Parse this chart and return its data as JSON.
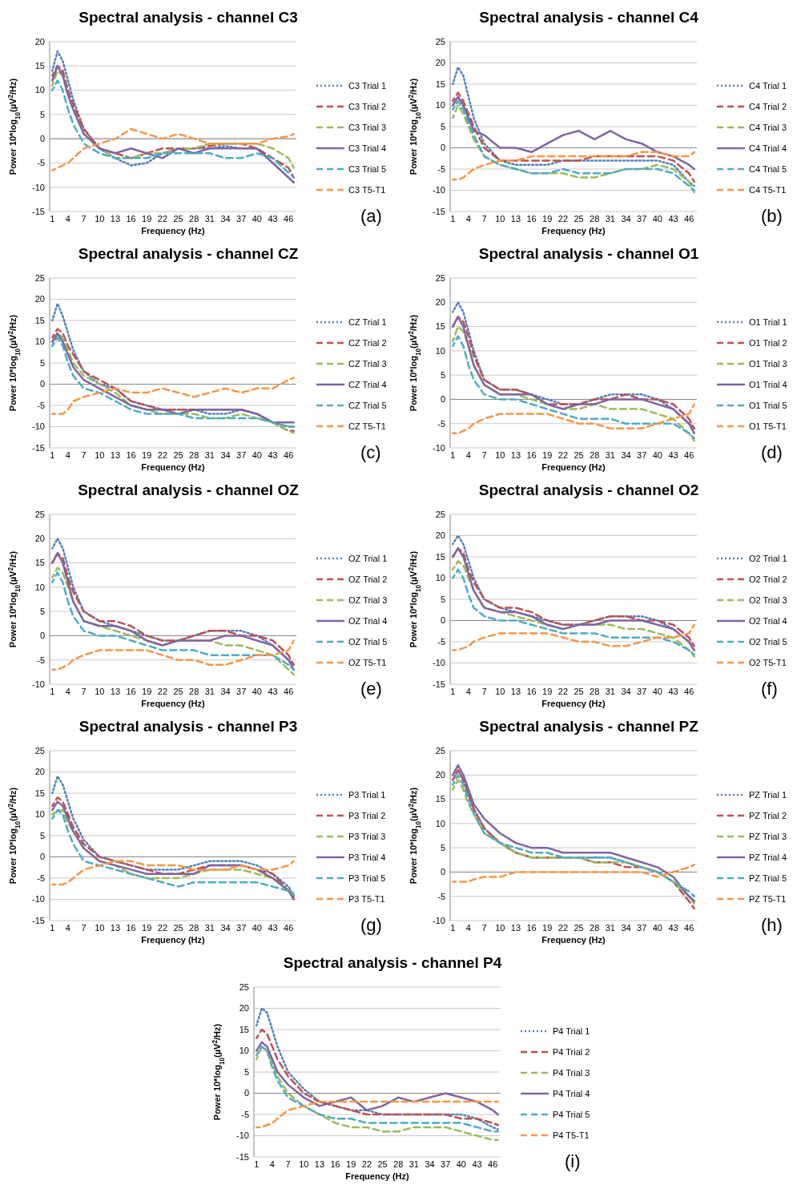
{
  "chart_data": [
    {
      "type": "line",
      "title": "Spectral analysis - channel C3",
      "xlabel": "Frequency (Hz)",
      "ylabel": "Power 10*log$_{10}$(µV$^{2}$/Hz)",
      "annotations": [
        "(a)"
      ],
      "legend": "right",
      "grid": "y",
      "x": [
        1,
        2,
        3,
        4,
        5,
        7,
        10,
        13,
        16,
        19,
        22,
        25,
        28,
        31,
        34,
        37,
        40,
        43,
        46,
        47
      ],
      "xlim": [
        0.5,
        47.5
      ],
      "xticks": [
        1,
        4,
        7,
        10,
        13,
        16,
        19,
        22,
        25,
        28,
        31,
        34,
        37,
        40,
        43,
        46
      ],
      "ylim": [
        -15,
        20
      ],
      "yticks": [
        -15,
        -10,
        -5,
        0,
        5,
        10,
        15,
        20
      ],
      "series": [
        {
          "name": "C3 Trial 1",
          "color": "#4f81bd",
          "line_style": "dotted",
          "values": [
            14,
            18,
            16,
            12,
            8,
            2,
            -2,
            -4,
            -5.5,
            -5,
            -3,
            -2,
            -2,
            -2,
            -1.5,
            -2,
            -2,
            -5,
            -8,
            -9
          ]
        },
        {
          "name": "C3 Trial 2",
          "color": "#c0504d",
          "line_style": "dashed",
          "values": [
            13,
            15,
            14,
            10,
            7,
            2,
            -2,
            -3,
            -4,
            -3,
            -2,
            -2,
            -2,
            -1.5,
            -1,
            -1,
            -2,
            -4,
            -6,
            -8
          ]
        },
        {
          "name": "C3 Trial 3",
          "color": "#9bbb59",
          "line_style": "dashed",
          "values": [
            11,
            14,
            13,
            9,
            6,
            1,
            -2,
            -4,
            -4,
            -3,
            -3,
            -2,
            -2,
            -1,
            -1,
            -1,
            -1,
            -2,
            -4,
            -6
          ]
        },
        {
          "name": "C3 Trial 4",
          "color": "#8064a2",
          "line_style": "solid",
          "values": [
            12,
            15,
            13,
            9,
            6,
            1,
            -2,
            -3,
            -2,
            -3,
            -4,
            -2,
            -3,
            -2,
            -2,
            -2,
            -2,
            -5,
            -8,
            -9
          ]
        },
        {
          "name": "C3 Trial 5",
          "color": "#4bacc6",
          "line_style": "dashed",
          "values": [
            10,
            12,
            10,
            6,
            3,
            -1,
            -3,
            -4,
            -4,
            -4,
            -3,
            -3,
            -3,
            -3,
            -4,
            -4,
            -3,
            -4,
            -7,
            -8
          ]
        },
        {
          "name": "C3 T5-T1",
          "color": "#f79646",
          "line_style": "dashed",
          "values": [
            -6.5,
            -6,
            -5.5,
            -5,
            -4,
            -2,
            -1,
            0,
            2,
            1,
            0,
            1,
            0,
            -1,
            -1,
            -1,
            -1,
            0,
            0.5,
            1
          ]
        }
      ]
    },
    {
      "type": "line",
      "title": "Spectral analysis - channel C4",
      "xlabel": "Frequency (Hz)",
      "ylabel": "Power 10*log$_{10}$(µV$^{2}$/Hz)",
      "annotations": [
        "(b)"
      ],
      "legend": "right",
      "grid": "y",
      "x": [
        1,
        2,
        3,
        4,
        5,
        7,
        10,
        13,
        16,
        19,
        22,
        25,
        28,
        31,
        34,
        37,
        40,
        43,
        46,
        47
      ],
      "xlim": [
        0.5,
        47.5
      ],
      "xticks": [
        1,
        4,
        7,
        10,
        13,
        16,
        19,
        22,
        25,
        28,
        31,
        34,
        37,
        40,
        43,
        46
      ],
      "ylim": [
        -15,
        25
      ],
      "yticks": [
        -15,
        -10,
        -5,
        0,
        5,
        10,
        15,
        20,
        25
      ],
      "series": [
        {
          "name": "C4 Trial 1",
          "color": "#4f81bd",
          "line_style": "dotted",
          "values": [
            15,
            19,
            17,
            12,
            7,
            1,
            -3,
            -4,
            -4,
            -4,
            -3,
            -3,
            -3,
            -3,
            -3,
            -3,
            -3,
            -4,
            -8,
            -9
          ]
        },
        {
          "name": "C4 Trial 2",
          "color": "#c0504d",
          "line_style": "dashed",
          "values": [
            11,
            13,
            11,
            8,
            5,
            0,
            -3,
            -3,
            -3,
            -3,
            -3,
            -3,
            -2,
            -2,
            -2,
            -2,
            -2,
            -3,
            -6,
            -8
          ]
        },
        {
          "name": "C4 Trial 3",
          "color": "#9bbb59",
          "line_style": "dashed",
          "values": [
            7,
            10,
            8,
            5,
            2,
            -2,
            -4,
            -5,
            -6,
            -6,
            -6,
            -7,
            -7,
            -6,
            -5,
            -5,
            -4,
            -5,
            -8,
            -10.5
          ]
        },
        {
          "name": "C4 Trial 4",
          "color": "#8064a2",
          "line_style": "solid",
          "values": [
            10,
            12,
            10,
            7,
            4,
            3,
            0,
            0,
            -1,
            1,
            3,
            4,
            2,
            4,
            2,
            1,
            -1,
            -2,
            -4,
            -5
          ]
        },
        {
          "name": "C4 Trial 5",
          "color": "#4bacc6",
          "line_style": "dashed",
          "values": [
            9,
            11,
            9,
            6,
            3,
            -2,
            -4,
            -5,
            -6,
            -6,
            -5,
            -6,
            -6,
            -6,
            -5,
            -5,
            -5,
            -6,
            -9,
            -10
          ]
        },
        {
          "name": "C4 T5-T1",
          "color": "#f79646",
          "line_style": "dashed",
          "values": [
            -7.5,
            -7.5,
            -7,
            -6,
            -5,
            -4,
            -3,
            -3,
            -2,
            -2,
            -2,
            -2,
            -2,
            -2,
            -2,
            -1,
            -1,
            -2,
            -2,
            -1
          ]
        }
      ]
    },
    {
      "type": "line",
      "title": "Spectral analysis - channel CZ",
      "xlabel": "Frequency (Hz)",
      "ylabel": "Power 10*log$_{10}$(µV$^{2}$/Hz)",
      "annotations": [
        "(c)"
      ],
      "legend": "right",
      "grid": "y",
      "x": [
        1,
        2,
        3,
        4,
        5,
        7,
        10,
        13,
        16,
        19,
        22,
        25,
        28,
        31,
        34,
        37,
        40,
        43,
        46,
        47
      ],
      "xlim": [
        0.5,
        47.5
      ],
      "xticks": [
        1,
        4,
        7,
        10,
        13,
        16,
        19,
        22,
        25,
        28,
        31,
        34,
        37,
        40,
        43,
        46
      ],
      "ylim": [
        -15,
        25
      ],
      "yticks": [
        -15,
        -10,
        -5,
        0,
        5,
        10,
        15,
        20,
        25
      ],
      "series": [
        {
          "name": "CZ Trial 1",
          "color": "#4f81bd",
          "line_style": "dotted",
          "values": [
            15,
            19,
            16,
            12,
            8,
            3,
            0,
            -1,
            -4,
            -5,
            -6,
            -6,
            -6,
            -7,
            -7,
            -6,
            -7,
            -9,
            -10,
            -10
          ]
        },
        {
          "name": "CZ Trial 2",
          "color": "#c0504d",
          "line_style": "dashed",
          "values": [
            11,
            13,
            12,
            9,
            7,
            3,
            1,
            -1,
            -4,
            -5,
            -6,
            -6,
            -6,
            -6,
            -6,
            -6,
            -7,
            -9,
            -11,
            -11
          ]
        },
        {
          "name": "CZ Trial 3",
          "color": "#9bbb59",
          "line_style": "dashed",
          "values": [
            9,
            12,
            11,
            8,
            5,
            2,
            0,
            -2,
            -5,
            -6,
            -7,
            -7,
            -7,
            -8,
            -8,
            -7,
            -8,
            -9,
            -11,
            -11.5
          ]
        },
        {
          "name": "CZ Trial 4",
          "color": "#8064a2",
          "line_style": "solid",
          "values": [
            10,
            12,
            10,
            7,
            4,
            1,
            -1,
            -3,
            -5,
            -6,
            -6,
            -7,
            -6,
            -6,
            -6,
            -6,
            -7,
            -9,
            -9,
            -9
          ]
        },
        {
          "name": "CZ Trial 5",
          "color": "#4bacc6",
          "line_style": "dashed",
          "values": [
            9,
            11,
            9,
            5,
            2,
            -1,
            -2,
            -4,
            -6,
            -7,
            -7,
            -7,
            -8,
            -8,
            -8,
            -8,
            -8,
            -9,
            -10,
            -10
          ]
        },
        {
          "name": "CZ T5-T1",
          "color": "#f79646",
          "line_style": "dashed",
          "values": [
            -7,
            -7,
            -7,
            -6,
            -4,
            -3,
            -2,
            -1,
            -2,
            -2,
            -1,
            -2,
            -3,
            -2,
            -1,
            -2,
            -1,
            -1,
            1,
            1.5
          ]
        }
      ]
    },
    {
      "type": "line",
      "title": "Spectral analysis - channel O1",
      "xlabel": "Frequency (Hz)",
      "ylabel": "Power 10*log$_{10}$(µV$^{2}$/Hz)",
      "annotations": [
        "(d)"
      ],
      "legend": "right",
      "grid": "y",
      "x": [
        1,
        2,
        3,
        4,
        5,
        7,
        10,
        13,
        16,
        19,
        22,
        25,
        28,
        31,
        34,
        37,
        40,
        43,
        46,
        47
      ],
      "xlim": [
        0.5,
        47.5
      ],
      "xticks": [
        1,
        4,
        7,
        10,
        13,
        16,
        19,
        22,
        25,
        28,
        31,
        34,
        37,
        40,
        43,
        46
      ],
      "ylim": [
        -10,
        25
      ],
      "yticks": [
        -10,
        -5,
        0,
        5,
        10,
        15,
        20,
        25
      ],
      "series": [
        {
          "name": "O1 Trial 1",
          "color": "#4f81bd",
          "line_style": "dotted",
          "values": [
            18,
            20,
            18,
            14,
            10,
            4,
            2,
            2,
            1,
            0,
            -1,
            -1,
            0,
            1,
            1,
            1,
            0,
            -2,
            -5,
            -6
          ]
        },
        {
          "name": "O1 Trial 2",
          "color": "#c0504d",
          "line_style": "dashed",
          "values": [
            15,
            17,
            16,
            13,
            9,
            4,
            2,
            2,
            1,
            -1,
            -1,
            -1,
            0,
            0,
            1,
            0,
            0,
            -1,
            -4,
            -6
          ]
        },
        {
          "name": "O1 Trial 3",
          "color": "#9bbb59",
          "line_style": "dashed",
          "values": [
            12,
            15,
            14,
            11,
            7,
            3,
            1,
            1,
            0,
            -1,
            -2,
            -2,
            -1,
            -2,
            -2,
            -2,
            -3,
            -4,
            -7,
            -8.5
          ]
        },
        {
          "name": "O1 Trial 4",
          "color": "#8064a2",
          "line_style": "solid",
          "values": [
            15,
            17,
            15,
            11,
            7,
            3,
            1,
            1,
            1,
            -1,
            -2,
            -1,
            -1,
            0,
            0,
            0,
            -1,
            -2,
            -5,
            -7
          ]
        },
        {
          "name": "O1 Trial 5",
          "color": "#4bacc6",
          "line_style": "dashed",
          "values": [
            11,
            13,
            11,
            7,
            4,
            1,
            0,
            0,
            -1,
            -2,
            -3,
            -4,
            -4,
            -4,
            -5,
            -5,
            -5,
            -5,
            -7,
            -8
          ]
        },
        {
          "name": "O1 T5-T1",
          "color": "#f79646",
          "line_style": "dashed",
          "values": [
            -7,
            -7,
            -6.5,
            -6,
            -5,
            -4,
            -3,
            -3,
            -3,
            -3,
            -4,
            -5,
            -5,
            -6,
            -6,
            -6,
            -5,
            -4,
            -3,
            -1
          ]
        }
      ]
    },
    {
      "type": "line",
      "title": "Spectral analysis - channel OZ",
      "xlabel": "Frequency (Hz)",
      "ylabel": "Power 10*log$_{10}$(µV$^{2}$/Hz)",
      "annotations": [
        "(e)"
      ],
      "legend": "right",
      "grid": "y",
      "x": [
        1,
        2,
        3,
        4,
        5,
        7,
        10,
        13,
        16,
        19,
        22,
        25,
        28,
        31,
        34,
        37,
        40,
        43,
        46,
        47
      ],
      "xlim": [
        0.5,
        47.5
      ],
      "xticks": [
        1,
        4,
        7,
        10,
        13,
        16,
        19,
        22,
        25,
        28,
        31,
        34,
        37,
        40,
        43,
        46
      ],
      "ylim": [
        -10,
        25
      ],
      "yticks": [
        -10,
        -5,
        0,
        5,
        10,
        15,
        20,
        25
      ],
      "series": [
        {
          "name": "OZ Trial 1",
          "color": "#4f81bd",
          "line_style": "dotted",
          "values": [
            18,
            20,
            18,
            14,
            10,
            5,
            3,
            2,
            1,
            0,
            -1,
            -1,
            0,
            1,
            1,
            1,
            0,
            -2,
            -5,
            -6
          ]
        },
        {
          "name": "OZ Trial 2",
          "color": "#c0504d",
          "line_style": "dashed",
          "values": [
            15,
            17,
            16,
            12,
            9,
            5,
            3,
            3,
            2,
            0,
            -1,
            -1,
            0,
            1,
            1,
            0,
            0,
            -1,
            -4,
            -6
          ]
        },
        {
          "name": "OZ Trial 3",
          "color": "#9bbb59",
          "line_style": "dashed",
          "values": [
            12,
            14,
            13,
            10,
            7,
            3,
            2,
            1,
            0,
            -1,
            -2,
            -1,
            -1,
            -1,
            -2,
            -2,
            -3,
            -4,
            -7,
            -8
          ]
        },
        {
          "name": "OZ Trial 4",
          "color": "#8064a2",
          "line_style": "solid",
          "values": [
            15,
            17,
            15,
            11,
            7,
            3,
            2,
            2,
            1,
            -1,
            -2,
            -1,
            -1,
            -1,
            0,
            0,
            -1,
            -2,
            -5,
            -7
          ]
        },
        {
          "name": "OZ Trial 5",
          "color": "#4bacc6",
          "line_style": "dashed",
          "values": [
            11,
            13,
            11,
            7,
            4,
            1,
            0,
            0,
            -1,
            -2,
            -3,
            -3,
            -3,
            -4,
            -4,
            -4,
            -4,
            -4,
            -6,
            -7
          ]
        },
        {
          "name": "OZ T5-T1",
          "color": "#f79646",
          "line_style": "dashed",
          "values": [
            -7,
            -7,
            -6.5,
            -6,
            -5,
            -4,
            -3,
            -3,
            -3,
            -3,
            -4,
            -5,
            -5,
            -6,
            -6,
            -5,
            -4,
            -4,
            -3,
            -1
          ]
        }
      ]
    },
    {
      "type": "line",
      "title": "Spectral analysis - channel O2",
      "xlabel": "Frequency (Hz)",
      "ylabel": "Power 10*log$_{10}$(µV$^{2}$/Hz)",
      "annotations": [
        "(f)"
      ],
      "legend": "right",
      "grid": "y",
      "x": [
        1,
        2,
        3,
        4,
        5,
        7,
        10,
        13,
        16,
        19,
        22,
        25,
        28,
        31,
        34,
        37,
        40,
        43,
        46,
        47
      ],
      "xlim": [
        0.5,
        47.5
      ],
      "xticks": [
        1,
        4,
        7,
        10,
        13,
        16,
        19,
        22,
        25,
        28,
        31,
        34,
        37,
        40,
        43,
        46
      ],
      "ylim": [
        -15,
        25
      ],
      "yticks": [
        -15,
        -10,
        -5,
        0,
        5,
        10,
        15,
        20,
        25
      ],
      "series": [
        {
          "name": "O2 Trial 1",
          "color": "#4f81bd",
          "line_style": "dotted",
          "values": [
            18,
            20,
            18,
            14,
            10,
            5,
            3,
            2,
            1,
            0,
            -1,
            -1,
            0,
            1,
            1,
            1,
            0,
            -2,
            -5,
            -7
          ]
        },
        {
          "name": "O2 Trial 2",
          "color": "#c0504d",
          "line_style": "dashed",
          "values": [
            15,
            17,
            16,
            12,
            9,
            5,
            3,
            3,
            2,
            0,
            -1,
            -1,
            0,
            1,
            1,
            0,
            0,
            -1,
            -4,
            -6
          ]
        },
        {
          "name": "O2 Trial 3",
          "color": "#9bbb59",
          "line_style": "dashed",
          "values": [
            12,
            14,
            13,
            10,
            7,
            3,
            2,
            1,
            0,
            -1,
            -2,
            -1,
            -1,
            -1,
            -2,
            -2,
            -3,
            -4,
            -7,
            -8.5
          ]
        },
        {
          "name": "O2 Trial 4",
          "color": "#8064a2",
          "line_style": "solid",
          "values": [
            15,
            17,
            15,
            11,
            7,
            3,
            2,
            2,
            1,
            -1,
            -2,
            -1,
            -1,
            0,
            0,
            0,
            -1,
            -2,
            -5,
            -7
          ]
        },
        {
          "name": "O2 Trial 5",
          "color": "#4bacc6",
          "line_style": "dashed",
          "values": [
            10,
            12,
            10,
            6,
            3,
            1,
            0,
            0,
            -1,
            -2,
            -3,
            -3,
            -3,
            -4,
            -4,
            -4,
            -4,
            -5,
            -7,
            -8
          ]
        },
        {
          "name": "O2 T5-T1",
          "color": "#f79646",
          "line_style": "dashed",
          "values": [
            -7,
            -7,
            -6.5,
            -6,
            -5,
            -4,
            -3,
            -3,
            -3,
            -3,
            -4,
            -5,
            -5,
            -6,
            -6,
            -5,
            -4,
            -4,
            -3,
            -1
          ]
        }
      ]
    },
    {
      "type": "line",
      "title": "Spectral analysis - channel P3",
      "xlabel": "Frequency (Hz)",
      "ylabel": "Power 10*log$_{10}$(µV$^{2}$/Hz)",
      "annotations": [
        "(g)"
      ],
      "legend": "right",
      "grid": "y",
      "x": [
        1,
        2,
        3,
        4,
        5,
        7,
        10,
        13,
        16,
        19,
        22,
        25,
        28,
        31,
        34,
        37,
        40,
        43,
        46,
        47
      ],
      "xlim": [
        0.5,
        47.5
      ],
      "xticks": [
        1,
        4,
        7,
        10,
        13,
        16,
        19,
        22,
        25,
        28,
        31,
        34,
        37,
        40,
        43,
        46
      ],
      "ylim": [
        -15,
        25
      ],
      "yticks": [
        -15,
        -10,
        -5,
        0,
        5,
        10,
        15,
        20,
        25
      ],
      "series": [
        {
          "name": "P3 Trial 1",
          "color": "#4f81bd",
          "line_style": "dotted",
          "values": [
            15,
            19,
            17,
            13,
            9,
            4,
            0,
            -1,
            -2,
            -3,
            -3,
            -3,
            -2,
            -1,
            -1,
            -1,
            -2,
            -4,
            -7,
            -9
          ]
        },
        {
          "name": "P3 Trial 2",
          "color": "#c0504d",
          "line_style": "dashed",
          "values": [
            12,
            14,
            13,
            10,
            7,
            3,
            0,
            -1,
            -2,
            -3,
            -4,
            -4,
            -3,
            -2,
            -2,
            -2,
            -3,
            -4,
            -8,
            -9.5
          ]
        },
        {
          "name": "P3 Trial 3",
          "color": "#9bbb59",
          "line_style": "dashed",
          "values": [
            10,
            11,
            11,
            8,
            6,
            2,
            -1,
            -2,
            -4,
            -5,
            -5,
            -5,
            -4,
            -3,
            -3,
            -3,
            -4,
            -5,
            -8,
            -8.5
          ]
        },
        {
          "name": "P3 Trial 4",
          "color": "#8064a2",
          "line_style": "solid",
          "values": [
            11,
            13,
            12,
            9,
            6,
            2,
            -1,
            -2,
            -3,
            -4,
            -4,
            -4,
            -4,
            -2,
            -2,
            -2,
            -3,
            -5,
            -8,
            -10
          ]
        },
        {
          "name": "P3 Trial 5",
          "color": "#4bacc6",
          "line_style": "dashed",
          "values": [
            9,
            11,
            10,
            6,
            3,
            -1,
            -2,
            -3,
            -4,
            -5,
            -6,
            -7,
            -6,
            -6,
            -6,
            -6,
            -6,
            -7,
            -8,
            -9
          ]
        },
        {
          "name": "P3 T5-T1",
          "color": "#f79646",
          "line_style": "dashed",
          "values": [
            -6.5,
            -6.5,
            -6.5,
            -6,
            -5,
            -3,
            -2,
            -1,
            -1,
            -2,
            -2,
            -2,
            -3,
            -3,
            -3,
            -2,
            -3,
            -3,
            -2,
            -1
          ]
        }
      ]
    },
    {
      "type": "line",
      "title": "Spectral analysis - channel PZ",
      "xlabel": "Frequency (Hz)",
      "ylabel": "Power 10*log$_{10}$(µV$^{2}$/Hz)",
      "annotations": [
        "(h)"
      ],
      "legend": "right",
      "grid": "y",
      "x": [
        1,
        2,
        3,
        4,
        5,
        7,
        10,
        13,
        16,
        19,
        22,
        25,
        28,
        31,
        34,
        37,
        40,
        43,
        46,
        47
      ],
      "xlim": [
        0.5,
        47.5
      ],
      "xticks": [
        1,
        4,
        7,
        10,
        13,
        16,
        19,
        22,
        25,
        28,
        31,
        34,
        37,
        40,
        43,
        46
      ],
      "ylim": [
        -10,
        25
      ],
      "yticks": [
        -10,
        -5,
        0,
        5,
        10,
        15,
        20,
        25
      ],
      "series": [
        {
          "name": "PZ Trial 1",
          "color": "#4f81bd",
          "line_style": "dotted",
          "values": [
            19,
            21,
            19,
            16,
            13,
            9,
            6,
            4,
            3,
            3,
            3,
            3,
            3,
            3,
            2,
            1,
            0,
            -2,
            -5,
            -6
          ]
        },
        {
          "name": "PZ Trial 2",
          "color": "#c0504d",
          "line_style": "dashed",
          "values": [
            19,
            21,
            19,
            16,
            13,
            9,
            6,
            4,
            3,
            3,
            3,
            3,
            2,
            2,
            1,
            1,
            0,
            -2,
            -6,
            -7.5
          ]
        },
        {
          "name": "PZ Trial 3",
          "color": "#9bbb59",
          "line_style": "dashed",
          "values": [
            17,
            19,
            17,
            14,
            12,
            8,
            6,
            4,
            3,
            3,
            3,
            3,
            2,
            2,
            2,
            1,
            0,
            -2,
            -5,
            -6.5
          ]
        },
        {
          "name": "PZ Trial 4",
          "color": "#8064a2",
          "line_style": "solid",
          "values": [
            20,
            22,
            20,
            17,
            14,
            11,
            8,
            6,
            5,
            5,
            4,
            4,
            4,
            4,
            3,
            2,
            1,
            -1,
            -5,
            -6
          ]
        },
        {
          "name": "PZ Trial 5",
          "color": "#4bacc6",
          "line_style": "dashed",
          "values": [
            18,
            20,
            18,
            15,
            12,
            8,
            6,
            5,
            4,
            4,
            3,
            3,
            3,
            3,
            2,
            1,
            0,
            -2,
            -4,
            -5
          ]
        },
        {
          "name": "PZ T5-T1",
          "color": "#f79646",
          "line_style": "dashed",
          "values": [
            -2,
            -2,
            -2,
            -2,
            -1.5,
            -1,
            -1,
            0,
            0,
            0,
            0,
            0,
            0,
            0,
            0,
            0,
            -1,
            0,
            1,
            1.5
          ]
        }
      ]
    },
    {
      "type": "line",
      "title": "Spectral analysis - channel P4",
      "xlabel": "Frequency (Hz)",
      "ylabel": "Power 10*log$_{10}$(µV$^{2}$/Hz)",
      "annotations": [
        "(i)"
      ],
      "legend": "right",
      "grid": "y",
      "x": [
        1,
        2,
        3,
        4,
        5,
        7,
        10,
        13,
        16,
        19,
        22,
        25,
        28,
        31,
        34,
        37,
        40,
        43,
        46,
        47
      ],
      "xlim": [
        0.5,
        47.5
      ],
      "xticks": [
        1,
        4,
        7,
        10,
        13,
        16,
        19,
        22,
        25,
        28,
        31,
        34,
        37,
        40,
        43,
        46
      ],
      "ylim": [
        -15,
        25
      ],
      "yticks": [
        -15,
        -10,
        -5,
        0,
        5,
        10,
        15,
        20,
        25
      ],
      "series": [
        {
          "name": "P4 Trial 1",
          "color": "#4f81bd",
          "line_style": "dotted",
          "values": [
            16,
            20,
            19,
            15,
            11,
            5,
            1,
            -2,
            -3,
            -4,
            -4,
            -5,
            -5,
            -5,
            -5,
            -5,
            -5,
            -6,
            -8,
            -8.5
          ]
        },
        {
          "name": "P4 Trial 2",
          "color": "#c0504d",
          "line_style": "dashed",
          "values": [
            13,
            15,
            14,
            11,
            8,
            4,
            0,
            -2,
            -3,
            -4,
            -5,
            -5,
            -5,
            -5,
            -5,
            -5,
            -6,
            -6,
            -7,
            -7.5
          ]
        },
        {
          "name": "P4 Trial 3",
          "color": "#9bbb59",
          "line_style": "dashed",
          "values": [
            8,
            11,
            10,
            7,
            4,
            0,
            -3,
            -5,
            -7,
            -8,
            -8,
            -9,
            -9,
            -8,
            -8,
            -8,
            -9,
            -10,
            -11,
            -11
          ]
        },
        {
          "name": "P4 Trial 4",
          "color": "#8064a2",
          "line_style": "solid",
          "values": [
            10,
            12,
            11,
            8,
            5,
            2,
            -1,
            -3,
            -2,
            -1,
            -4,
            -3,
            -1,
            -2,
            -1,
            0,
            -1,
            -2,
            -4,
            -5
          ]
        },
        {
          "name": "P4 Trial 5",
          "color": "#4bacc6",
          "line_style": "dashed",
          "values": [
            9,
            11,
            10,
            6,
            3,
            -1,
            -3,
            -5,
            -6,
            -6,
            -7,
            -7,
            -7,
            -7,
            -7,
            -7,
            -7,
            -8,
            -9,
            -9
          ]
        },
        {
          "name": "P4 T5-T1",
          "color": "#f79646",
          "line_style": "dashed",
          "values": [
            -8,
            -8,
            -7.5,
            -7,
            -6,
            -4,
            -3,
            -2,
            -2,
            -2,
            -2,
            -2,
            -2,
            -2,
            -2,
            -2,
            -2,
            -2,
            -2,
            -2
          ]
        }
      ]
    }
  ]
}
